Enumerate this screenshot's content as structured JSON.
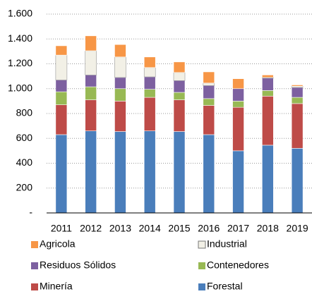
{
  "chart_data": {
    "type": "stacked_bar",
    "categories": [
      "2011",
      "2012",
      "2013",
      "2014",
      "2015",
      "2016",
      "2017",
      "2018",
      "2019"
    ],
    "series": [
      {
        "name": "Forestal",
        "color": "#4a7ebb",
        "values": [
          630,
          660,
          655,
          660,
          655,
          630,
          500,
          545,
          520
        ]
      },
      {
        "name": "Minería",
        "color": "#be4b48",
        "values": [
          240,
          250,
          245,
          270,
          255,
          235,
          350,
          395,
          360
        ]
      },
      {
        "name": "Contenedores",
        "color": "#98b954",
        "values": [
          105,
          105,
          100,
          65,
          60,
          55,
          50,
          45,
          50
        ]
      },
      {
        "name": "Residuos Sólidos",
        "color": "#7d60a0",
        "values": [
          95,
          95,
          90,
          100,
          95,
          105,
          100,
          100,
          80
        ]
      },
      {
        "name": "Industrial",
        "color": "#f2f0e6",
        "values": [
          200,
          195,
          165,
          75,
          65,
          20,
          0,
          5,
          10
        ]
      },
      {
        "name": "Agricola",
        "color": "#f79646",
        "values": [
          75,
          120,
          100,
          85,
          85,
          90,
          80,
          20,
          10
        ]
      }
    ],
    "ylim": [
      0,
      1600
    ],
    "yticks": [
      {
        "value": 0,
        "label": "-"
      },
      200,
      400,
      600,
      800,
      {
        "value": 1000,
        "label": "1.000"
      },
      {
        "value": 1200,
        "label": "1.200"
      },
      {
        "value": 1400,
        "label": "1.400"
      },
      {
        "value": 1600,
        "label": "1.600"
      }
    ],
    "grid": true
  }
}
